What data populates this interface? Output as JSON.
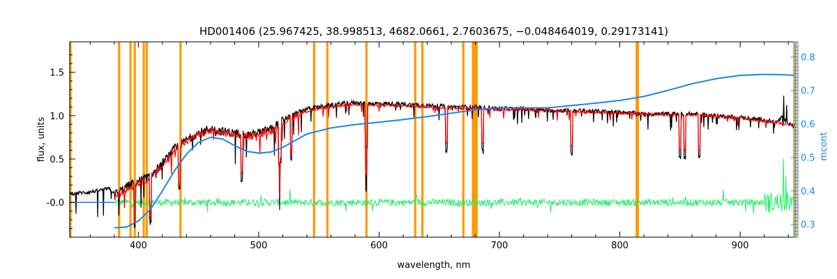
{
  "chart_data": {
    "type": "line",
    "title": "HD001406   (25.967425, 38.998513, 4682.0661, 2.7603675, −0.048464019, 0.29173141)",
    "xlabel": "wavelength, nm",
    "ylabel": "flux, units",
    "y2label": "mcont",
    "xlim": [
      343,
      948
    ],
    "ylim": [
      -0.4,
      1.85
    ],
    "y2lim": [
      0.262,
      0.845
    ],
    "xticks": [
      400,
      500,
      600,
      700,
      800,
      900
    ],
    "yticks": [
      "-0.0",
      "0.5",
      "1.0",
      "1.5"
    ],
    "yticks_values": [
      0.0,
      0.5,
      1.0,
      1.5
    ],
    "y2ticks": [
      "0.3",
      "0.4",
      "0.5",
      "0.6",
      "0.7",
      "0.8"
    ],
    "y2ticks_values": [
      0.3,
      0.4,
      0.5,
      0.6,
      0.7,
      0.8
    ],
    "grid": false,
    "legend": "none",
    "colors": {
      "observed": "#000000",
      "model": "#ff0000",
      "residual": "#22ee66",
      "continuum": "#1a86e6",
      "masked": "#ff9900",
      "axis2": "#1a86e6"
    },
    "masked_lines_nm": [
      343.5,
      384,
      393.5,
      397,
      404.5,
      407,
      435,
      546,
      557,
      589.5,
      630,
      636,
      670,
      678,
      679.5,
      681,
      814,
      815,
      946
    ],
    "series": [
      {
        "key": "observed",
        "x": [
          343,
          360,
          375,
          382,
          390,
          400,
          410,
          420,
          430,
          440,
          450,
          460,
          470,
          480,
          490,
          500,
          510,
          520,
          530,
          540,
          550,
          560,
          570,
          580,
          590,
          600,
          620,
          640,
          660,
          680,
          700,
          720,
          740,
          760,
          780,
          800,
          820,
          840,
          860,
          880,
          900,
          920,
          930,
          935,
          940,
          945
        ],
        "y": [
          0.1,
          0.12,
          0.16,
          0.1,
          0.18,
          0.25,
          0.3,
          0.45,
          0.62,
          0.72,
          0.8,
          0.85,
          0.82,
          0.8,
          0.78,
          0.8,
          0.85,
          0.95,
          1.02,
          1.08,
          1.1,
          1.12,
          1.14,
          1.15,
          1.14,
          1.14,
          1.13,
          1.12,
          1.1,
          1.1,
          1.08,
          1.08,
          1.06,
          1.06,
          1.05,
          1.04,
          1.02,
          1.02,
          1.02,
          1.0,
          0.98,
          0.95,
          0.92,
          0.98,
          0.9,
          0.88
        ]
      },
      {
        "key": "model",
        "x": [
          380,
          390,
          400,
          410,
          420,
          430,
          440,
          450,
          460,
          470,
          480,
          490,
          500,
          510,
          520,
          530,
          540,
          550,
          560,
          570,
          580,
          590,
          600,
          620,
          640,
          660,
          680,
          700,
          720,
          740,
          760,
          780,
          800,
          820,
          840,
          860,
          880,
          900,
          920,
          940,
          945
        ],
        "y": [
          0.05,
          0.15,
          0.22,
          0.28,
          0.42,
          0.6,
          0.7,
          0.78,
          0.82,
          0.8,
          0.78,
          0.76,
          0.78,
          0.82,
          0.92,
          1.0,
          1.05,
          1.08,
          1.1,
          1.12,
          1.13,
          1.12,
          1.12,
          1.11,
          1.1,
          1.09,
          1.08,
          1.07,
          1.07,
          1.06,
          1.05,
          1.04,
          1.03,
          1.02,
          1.01,
          1.01,
          0.99,
          0.97,
          0.94,
          0.9,
          0.88
        ]
      },
      {
        "key": "residual",
        "x": [
          380,
          945
        ],
        "y": [
          0.0,
          0.0
        ]
      },
      {
        "key": "continuum",
        "axis": "y2",
        "x": [
          380,
          390,
          400,
          410,
          420,
          430,
          440,
          450,
          460,
          470,
          480,
          490,
          500,
          510,
          520,
          530,
          540,
          560,
          580,
          600,
          620,
          640,
          660,
          680,
          700,
          720,
          740,
          760,
          780,
          800,
          820,
          840,
          860,
          880,
          900,
          920,
          935,
          945
        ],
        "y": [
          0.29,
          0.292,
          0.31,
          0.345,
          0.4,
          0.46,
          0.51,
          0.545,
          0.56,
          0.555,
          0.535,
          0.518,
          0.513,
          0.516,
          0.53,
          0.55,
          0.57,
          0.588,
          0.598,
          0.605,
          0.613,
          0.622,
          0.632,
          0.642,
          0.648,
          0.648,
          0.648,
          0.655,
          0.662,
          0.67,
          0.682,
          0.7,
          0.72,
          0.735,
          0.745,
          0.748,
          0.747,
          0.745
        ]
      }
    ]
  }
}
